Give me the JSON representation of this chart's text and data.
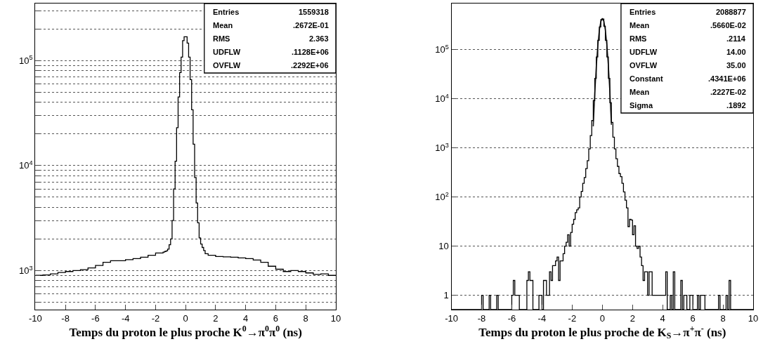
{
  "chart_data": [
    {
      "type": "histogram",
      "color": "#000000",
      "log": true,
      "grid": "y",
      "xlabel": "Temps du proton le plus proche K$^{0}$→π$^{0}$π$^{0}$ (ns)",
      "bins": [
        -10,
        -9.5,
        -9,
        -8.5,
        -8,
        -7.5,
        -7,
        -6.5,
        -6,
        -5.5,
        -5,
        -4.5,
        -4,
        -3.5,
        -3,
        -2.5,
        -2,
        -1.5,
        -1.4,
        -1.3,
        -1.2,
        -1.1,
        -1.0,
        -0.9,
        -0.8,
        -0.7,
        -0.6,
        -0.5,
        -0.4,
        -0.3,
        -0.2,
        -0.1,
        0,
        0.1,
        0.2,
        0.3,
        0.4,
        0.5,
        0.6,
        0.7,
        0.8,
        0.9,
        1.0,
        1.1,
        1.2,
        1.3,
        1.5,
        2,
        2.5,
        3,
        3.5,
        4,
        4.5,
        5,
        5.5,
        6,
        6.5,
        7,
        7.5,
        8,
        8.5,
        9,
        9.5,
        10
      ],
      "values": [
        900,
        910,
        930,
        960,
        980,
        1000,
        1020,
        1060,
        1120,
        1200,
        1240,
        1240,
        1270,
        1300,
        1340,
        1400,
        1470,
        1500,
        1520,
        1540,
        1600,
        1760,
        2000,
        3000,
        6000,
        11000,
        23000,
        45000,
        77000,
        108000,
        155000,
        169000,
        169000,
        147000,
        108000,
        66000,
        34000,
        16000,
        7700,
        4400,
        2850,
        2050,
        1790,
        1660,
        1550,
        1450,
        1400,
        1360,
        1350,
        1340,
        1320,
        1300,
        1260,
        1200,
        1100,
        1030,
        980,
        1000,
        980,
        950,
        920,
        930,
        900
      ],
      "xlim": [
        -10,
        10
      ],
      "xticks": [
        -10,
        -8,
        -6,
        -4,
        -2,
        0,
        2,
        4,
        6,
        8,
        10
      ],
      "ylim": [
        425,
        350000
      ],
      "yticks": [
        {
          "value": 500,
          "label": null
        },
        {
          "value": 600,
          "label": null
        },
        {
          "value": 700,
          "label": null
        },
        {
          "value": 800,
          "label": null
        },
        {
          "value": 900,
          "label": null
        },
        {
          "value": 1000,
          "label": "10$^{3}$"
        },
        {
          "value": 2000,
          "label": null
        },
        {
          "value": 3000,
          "label": null
        },
        {
          "value": 4000,
          "label": null
        },
        {
          "value": 5000,
          "label": null
        },
        {
          "value": 6000,
          "label": null
        },
        {
          "value": 7000,
          "label": null
        },
        {
          "value": 8000,
          "label": null
        },
        {
          "value": 9000,
          "label": null
        },
        {
          "value": 10000,
          "label": "10$^{4}$"
        },
        {
          "value": 20000,
          "label": null
        },
        {
          "value": 30000,
          "label": null
        },
        {
          "value": 40000,
          "label": null
        },
        {
          "value": 50000,
          "label": null
        },
        {
          "value": 60000,
          "label": null
        },
        {
          "value": 70000,
          "label": null
        },
        {
          "value": 80000,
          "label": null
        },
        {
          "value": 90000,
          "label": null
        },
        {
          "value": 100000,
          "label": "10$^{5}$"
        },
        {
          "value": 200000,
          "label": null
        },
        {
          "value": 300000,
          "label": null
        }
      ],
      "annotations": [
        "Entries 1559318",
        "Mean .2672E-01",
        "RMS 2.363",
        "UDFLW .1128E+06",
        "OVFLW .2292E+06"
      ]
    },
    {
      "type": "histogram",
      "color": "#000000",
      "log": true,
      "grid": "y",
      "xlabel": "Temps du proton le plus proche de K$_{S}$→π$^{+}$π$^{-}$ (ns)",
      "bins": [
        -10,
        -9.9,
        -9.8,
        -9.7,
        -9.6,
        -9.5,
        -9.4,
        -9.3,
        -9.2,
        -9.1,
        -9,
        -8.9,
        -8.8,
        -8.7,
        -8.6,
        -8.5,
        -8.4,
        -8.3,
        -8.2,
        -8.1,
        -8,
        -7.9,
        -7.8,
        -7.7,
        -7.6,
        -7.5,
        -7.4,
        -7.3,
        -7.2,
        -7.1,
        -7,
        -6.9,
        -6.8,
        -6.7,
        -6.6,
        -6.5,
        -6.4,
        -6.3,
        -6.2,
        -6.1,
        -6,
        -5.9,
        -5.8,
        -5.7,
        -5.6,
        -5.5,
        -5.4,
        -5.3,
        -5.2,
        -5.1,
        -5,
        -4.9,
        -4.8,
        -4.7,
        -4.6,
        -4.5,
        -4.4,
        -4.3,
        -4.2,
        -4.1,
        -4,
        -3.9,
        -3.8,
        -3.7,
        -3.6,
        -3.5,
        -3.4,
        -3.3,
        -3.2,
        -3.1,
        -3,
        -2.9,
        -2.8,
        -2.7,
        -2.6,
        -2.5,
        -2.4,
        -2.3,
        -2.2,
        -2.1,
        -2,
        -1.9,
        -1.8,
        -1.7,
        -1.6,
        -1.5,
        -1.4,
        -1.3,
        -1.2,
        -1.1,
        -1,
        -0.9,
        -0.8,
        -0.7,
        -0.6,
        -0.5,
        -0.4,
        -0.3,
        -0.2,
        -0.1,
        0,
        0.1,
        0.2,
        0.3,
        0.4,
        0.5,
        0.6,
        0.7,
        0.8,
        0.9,
        1,
        1.1,
        1.2,
        1.3,
        1.4,
        1.5,
        1.6,
        1.7,
        1.8,
        1.9,
        2,
        2.1,
        2.2,
        2.3,
        2.4,
        2.5,
        2.6,
        2.7,
        2.8,
        2.9,
        3,
        3.1,
        3.2,
        3.3,
        3.4,
        3.5,
        3.6,
        3.7,
        3.8,
        3.9,
        4,
        4.1,
        4.2,
        4.3,
        4.4,
        4.5,
        4.6,
        4.7,
        4.8,
        4.9,
        5,
        5.1,
        5.2,
        5.3,
        5.4,
        5.5,
        5.6,
        5.7,
        5.8,
        5.9,
        6,
        6.1,
        6.2,
        6.3,
        6.4,
        6.5,
        6.6,
        6.7,
        6.8,
        6.9,
        7,
        7.1,
        7.2,
        7.3,
        7.4,
        7.5,
        7.6,
        7.7,
        7.8,
        7.9,
        8,
        8.1,
        8.2,
        8.3,
        8.4,
        8.5,
        8.6,
        8.7,
        8.8,
        8.9,
        9,
        9.1,
        9.2,
        9.3,
        9.4,
        9.5,
        9.6,
        9.7,
        9.8,
        9.9,
        10
      ],
      "values": [
        null,
        null,
        null,
        null,
        null,
        null,
        null,
        null,
        null,
        null,
        null,
        null,
        null,
        null,
        null,
        null,
        null,
        null,
        null,
        null,
        1,
        null,
        null,
        null,
        null,
        1,
        null,
        null,
        null,
        null,
        1,
        null,
        null,
        null,
        null,
        null,
        null,
        null,
        null,
        null,
        1,
        2,
        1,
        1,
        1,
        null,
        null,
        null,
        null,
        null,
        2,
        3,
        2,
        2,
        null,
        null,
        null,
        null,
        1,
        1,
        null,
        2,
        2,
        1,
        1,
        3,
        2,
        4,
        4,
        5,
        6,
        2,
        5,
        5,
        7,
        10,
        12,
        17,
        10,
        19,
        28,
        35,
        48,
        55,
        60,
        100,
        130,
        190,
        250,
        380,
        550,
        950,
        1780,
        3600,
        9200,
        26000,
        71000,
        155000,
        290000,
        410000,
        420000,
        300000,
        155000,
        71000,
        26000,
        8300,
        3300,
        1650,
        950,
        600,
        420,
        300,
        260,
        190,
        127,
        86,
        60,
        25,
        35,
        34,
        17,
        26,
        10,
        9,
        10,
        6,
        4,
        2,
        3,
        3,
        1,
        3,
        3,
        1,
        1,
        1,
        1,
        1,
        1,
        1,
        1,
        1,
        3,
        null,
        null,
        1,
        null,
        3,
        null,
        null,
        null,
        null,
        2,
        null,
        1,
        1,
        null,
        null,
        1,
        1,
        null,
        null,
        null,
        1,
        null,
        1,
        1,
        1,
        null,
        null,
        null,
        null,
        null,
        null,
        null,
        null,
        null,
        1,
        null,
        null,
        null,
        null,
        1,
        null,
        2,
        null,
        null,
        null,
        null,
        null,
        null,
        null,
        null,
        null,
        null,
        null,
        null,
        null,
        null,
        null
      ],
      "series": [
        {
          "type": "line",
          "color": "#1c1c1c",
          "x": [
            -0.6,
            -0.5,
            -0.4,
            -0.3,
            -0.2,
            -0.1,
            0,
            0.1,
            0.2,
            0.3,
            0.4,
            0.5,
            0.6
          ],
          "values": [
            2740,
            12830,
            45300,
            121300,
            245100,
            375200,
            434100,
            379800,
            251300,
            125800,
            47620,
            13630,
            2950
          ]
        }
      ],
      "xlim": [
        -10,
        10
      ],
      "xticks": [
        -10,
        -8,
        -6,
        -4,
        -2,
        0,
        2,
        4,
        6,
        8,
        10
      ],
      "ylim": [
        0.51,
        870000
      ],
      "yticks": [
        1,
        10,
        {
          "value": 100,
          "label": "10$^{2}$"
        },
        {
          "value": 1000,
          "label": "10$^{3}$"
        },
        {
          "value": 10000,
          "label": "10$^{4}$"
        },
        {
          "value": 100000,
          "label": "10$^{5}$"
        }
      ],
      "annotations": [
        "Entries 2088877",
        "Mean .5660E-02",
        "RMS .2114",
        "UDFLW 14.00",
        "OVFLW 35.00",
        "Constant .4341E+06",
        "Mean .2227E-02",
        "Sigma .1892"
      ]
    }
  ]
}
